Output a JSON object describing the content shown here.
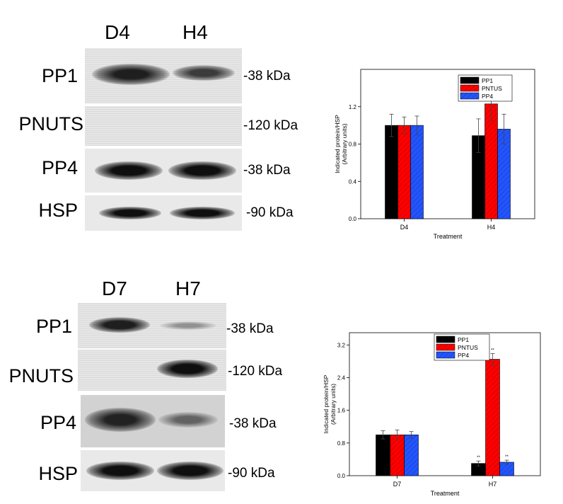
{
  "panel_top": {
    "lanes": [
      "D4",
      "H4"
    ],
    "rows": [
      {
        "protein": "PP1",
        "size": "-38 kDa",
        "intensity": [
          0.85,
          0.7
        ]
      },
      {
        "protein": "PNUTS",
        "size": "-120 kDa",
        "intensity": [
          0.02,
          0.05
        ]
      },
      {
        "protein": "PP4",
        "size": "-38 kDa",
        "intensity": [
          0.95,
          0.95
        ]
      },
      {
        "protein": "HSP",
        "size": "-90 kDa",
        "intensity": [
          0.95,
          0.95
        ]
      }
    ]
  },
  "panel_bottom": {
    "lanes": [
      "D7",
      "H7"
    ],
    "rows": [
      {
        "protein": "PP1",
        "size": "-38 kDa",
        "intensity": [
          0.85,
          0.15
        ]
      },
      {
        "protein": "PNUTS",
        "size": "-120 kDa",
        "intensity": [
          0.0,
          0.95
        ]
      },
      {
        "protein": "PP4",
        "size": "-38 kDa",
        "intensity": [
          0.85,
          0.35
        ]
      },
      {
        "protein": "HSP",
        "size": "-90 kDa",
        "intensity": [
          0.9,
          0.9
        ]
      }
    ]
  },
  "chart_data": [
    {
      "type": "bar",
      "categories": [
        "D4",
        "H4"
      ],
      "xlabel": "Treatment",
      "ylabel": "Indicated protein/HSP",
      "ylabel2": "(Arbitrary units)",
      "ylim": [
        0,
        1.6
      ],
      "yticks": [
        "0.0",
        "0.4",
        "0.8",
        "1.2"
      ],
      "ytick_values": [
        0,
        0.4,
        0.8,
        1.2
      ],
      "legend_position": "top-right",
      "series": [
        {
          "name": "PP1",
          "color": "#000000",
          "values": [
            1.0,
            0.89
          ],
          "errors": [
            0.12,
            0.18
          ]
        },
        {
          "name": "PNTUS",
          "color": "#ff0000",
          "values": [
            1.0,
            1.23
          ],
          "errors": [
            0.09,
            0.18
          ]
        },
        {
          "name": "PP4",
          "color": "#2255ff",
          "values": [
            1.0,
            0.96
          ],
          "errors": [
            0.1,
            0.16
          ]
        }
      ],
      "annotations": [
        [
          "",
          "",
          ""
        ],
        [
          "",
          "",
          ""
        ]
      ]
    },
    {
      "type": "bar",
      "categories": [
        "D7",
        "H7"
      ],
      "xlabel": "Treatment",
      "ylabel": "Indicated protein/HSP",
      "ylabel2": "(Arbitrary units)",
      "ylim": [
        0,
        3.5
      ],
      "yticks": [
        "0.0",
        "0.8",
        "1.6",
        "2.4",
        "3.2"
      ],
      "ytick_values": [
        0,
        0.8,
        1.6,
        2.4,
        3.2
      ],
      "legend_position": "top-right",
      "series": [
        {
          "name": "PP1",
          "color": "#000000",
          "values": [
            1.0,
            0.3
          ],
          "errors": [
            0.1,
            0.06
          ]
        },
        {
          "name": "PNTUS",
          "color": "#ff0000",
          "values": [
            1.0,
            2.85
          ],
          "errors": [
            0.12,
            0.14
          ]
        },
        {
          "name": "PP4",
          "color": "#2255ff",
          "values": [
            1.0,
            0.33
          ],
          "errors": [
            0.08,
            0.05
          ]
        }
      ],
      "annotations": [
        [
          "",
          "",
          ""
        ],
        [
          "**",
          "**",
          "**"
        ]
      ]
    }
  ]
}
